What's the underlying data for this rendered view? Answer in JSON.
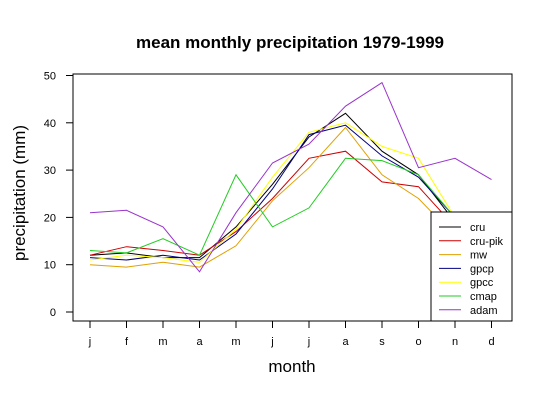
{
  "chart_data": {
    "type": "line",
    "title": "mean monthly precipitation 1979-1999",
    "xlabel": "month",
    "ylabel": "precipitation (mm)",
    "categories": [
      "j",
      "f",
      "m",
      "a",
      "m",
      "j",
      "j",
      "a",
      "s",
      "o",
      "n",
      "d"
    ],
    "yticks": [
      "0",
      "10",
      "20",
      "30",
      "40",
      "50"
    ],
    "ylim": [
      0,
      50
    ],
    "grid": false,
    "legend_position": "bottom-right",
    "series": [
      {
        "name": "cru",
        "color": "#000000",
        "values": [
          12.0,
          12.5,
          11.5,
          11.5,
          18.0,
          27.0,
          37.0,
          42.0,
          34.0,
          29.0,
          19.0,
          null
        ]
      },
      {
        "name": "cru-pik",
        "color": "#cc0000",
        "values": [
          12.0,
          13.8,
          13.0,
          12.0,
          17.0,
          24.0,
          32.5,
          34.0,
          27.5,
          26.5,
          18.0,
          null
        ]
      },
      {
        "name": "mw",
        "color": "#e0a000",
        "values": [
          10.0,
          9.5,
          10.5,
          9.5,
          14.0,
          23.5,
          30.5,
          39.0,
          29.0,
          24.0,
          16.0,
          null
        ]
      },
      {
        "name": "gpcp",
        "color": "#000080",
        "values": [
          11.5,
          11.0,
          12.0,
          11.0,
          16.5,
          26.0,
          37.5,
          39.5,
          33.0,
          28.5,
          20.0,
          null
        ]
      },
      {
        "name": "gpcc",
        "color": "#ffff00",
        "values": [
          11.0,
          12.0,
          11.5,
          10.5,
          17.5,
          28.5,
          38.0,
          40.0,
          35.0,
          32.5,
          20.0,
          null
        ]
      },
      {
        "name": "cmap",
        "color": "#22cc22",
        "values": [
          13.0,
          12.5,
          15.5,
          12.0,
          29.0,
          18.0,
          22.0,
          32.5,
          32.0,
          29.0,
          20.0,
          null
        ]
      },
      {
        "name": "adam",
        "color": "#9933cc",
        "values": [
          21.0,
          21.5,
          18.0,
          8.5,
          21.0,
          31.5,
          35.5,
          43.5,
          48.5,
          30.5,
          32.5,
          28.0
        ]
      }
    ]
  }
}
